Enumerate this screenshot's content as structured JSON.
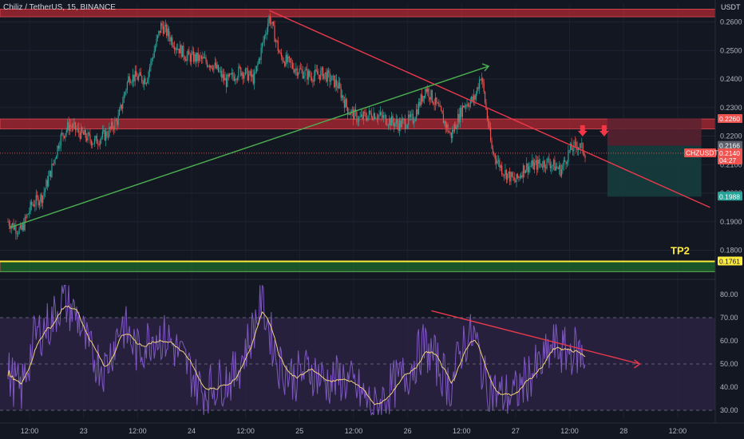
{
  "header": {
    "symbol": "Chiliz / TetherUS, 15, BINANCE",
    "currency": "USDT"
  },
  "colors": {
    "background": "#131722",
    "up": "#26a69a",
    "down": "#ef5350",
    "resistance_zone": "#b22833",
    "trendline_red": "#e8394b",
    "trendline_green": "#4caf50",
    "tp_line": "#ffeb3b",
    "tp_zone": "#1e6b2e",
    "rsi": "#7e57c2",
    "rsi_ma": "#f2d27d",
    "rsi_band": "#2a2140",
    "stop_zone": "#5c2230",
    "target_zone": "#163d3d"
  },
  "annotations": {
    "tp2_label": "TP2",
    "price_tag": "CHZUSDT",
    "tags": [
      {
        "id": "resistance",
        "text": "0.2260",
        "color": "#ef5350"
      },
      {
        "id": "entry",
        "text": "0.2166",
        "color": "#5d606b"
      },
      {
        "id": "last",
        "text": "0.2140",
        "sub": "04:27",
        "color": "#ef5350"
      },
      {
        "id": "target",
        "text": "0.1988",
        "color": "#26a69a"
      },
      {
        "id": "tp2",
        "text": "0.1761",
        "color": "#ffeb3b"
      }
    ]
  },
  "chart_data": [
    {
      "type": "candlestick",
      "title": "Chiliz / TetherUS, 15, BINANCE",
      "x_ticks": [
        "12:00",
        "23",
        "12:00",
        "24",
        "12:00",
        "25",
        "12:00",
        "26",
        "12:00",
        "27",
        "12:00",
        "28",
        "12:00"
      ],
      "y_ticks": [
        "0.2600",
        "0.2500",
        "0.2400",
        "0.2300",
        "0.2200",
        "0.2100",
        "0.2000",
        "0.1900",
        "0.1800"
      ],
      "ylim": [
        0.172,
        0.2665
      ],
      "xlim_days": [
        22.3,
        28.8
      ],
      "price_path": [
        [
          22.3,
          0.19
        ],
        [
          22.42,
          0.1865
        ],
        [
          22.52,
          0.196
        ],
        [
          22.62,
          0.199
        ],
        [
          22.7,
          0.208
        ],
        [
          22.78,
          0.219
        ],
        [
          22.87,
          0.224
        ],
        [
          22.97,
          0.221
        ],
        [
          23.1,
          0.218
        ],
        [
          23.22,
          0.221
        ],
        [
          23.32,
          0.226
        ],
        [
          23.42,
          0.241
        ],
        [
          23.58,
          0.24
        ],
        [
          23.72,
          0.259
        ],
        [
          23.85,
          0.252
        ],
        [
          23.95,
          0.248
        ],
        [
          24.08,
          0.247
        ],
        [
          24.2,
          0.245
        ],
        [
          24.32,
          0.239
        ],
        [
          24.45,
          0.243
        ],
        [
          24.58,
          0.24
        ],
        [
          24.72,
          0.262
        ],
        [
          24.82,
          0.248
        ],
        [
          24.95,
          0.244
        ],
        [
          25.1,
          0.241
        ],
        [
          25.22,
          0.242
        ],
        [
          25.35,
          0.238
        ],
        [
          25.45,
          0.229
        ],
        [
          25.55,
          0.226
        ],
        [
          25.68,
          0.228
        ],
        [
          25.8,
          0.226
        ],
        [
          25.92,
          0.224
        ],
        [
          26.05,
          0.226
        ],
        [
          26.17,
          0.237
        ],
        [
          26.28,
          0.23
        ],
        [
          26.4,
          0.22
        ],
        [
          26.52,
          0.231
        ],
        [
          26.62,
          0.233
        ],
        [
          26.68,
          0.242
        ],
        [
          26.78,
          0.215
        ],
        [
          26.88,
          0.208
        ],
        [
          27.0,
          0.204
        ],
        [
          27.08,
          0.209
        ],
        [
          27.2,
          0.21
        ],
        [
          27.3,
          0.211
        ],
        [
          27.42,
          0.208
        ],
        [
          27.5,
          0.215
        ],
        [
          27.58,
          0.217
        ],
        [
          27.65,
          0.214
        ]
      ],
      "rsi_path": [
        [
          22.3,
          46
        ],
        [
          22.42,
          38
        ],
        [
          22.55,
          62
        ],
        [
          22.7,
          68
        ],
        [
          22.8,
          78
        ],
        [
          22.95,
          70
        ],
        [
          23.05,
          55
        ],
        [
          23.2,
          48
        ],
        [
          23.35,
          68
        ],
        [
          23.5,
          55
        ],
        [
          23.65,
          63
        ],
        [
          23.8,
          60
        ],
        [
          23.95,
          50
        ],
        [
          24.1,
          38
        ],
        [
          24.25,
          42
        ],
        [
          24.4,
          45
        ],
        [
          24.55,
          62
        ],
        [
          24.65,
          78
        ],
        [
          24.8,
          50
        ],
        [
          24.95,
          44
        ],
        [
          25.1,
          48
        ],
        [
          25.25,
          42
        ],
        [
          25.4,
          44
        ],
        [
          25.55,
          38
        ],
        [
          25.7,
          30
        ],
        [
          25.85,
          40
        ],
        [
          26.0,
          46
        ],
        [
          26.15,
          58
        ],
        [
          26.25,
          52
        ],
        [
          26.4,
          40
        ],
        [
          26.52,
          60
        ],
        [
          26.62,
          62
        ],
        [
          26.72,
          42
        ],
        [
          26.85,
          36
        ],
        [
          27.0,
          37
        ],
        [
          27.1,
          44
        ],
        [
          27.25,
          50
        ],
        [
          27.35,
          58
        ],
        [
          27.45,
          55
        ],
        [
          27.55,
          56
        ],
        [
          27.65,
          52
        ]
      ],
      "rsi_ylim": [
        26,
        86
      ],
      "rsi_ticks": [
        "80.00",
        "70.00",
        "60.00",
        "50.00",
        "40.00",
        "30.00"
      ],
      "rsi_bands": [
        70,
        50,
        30
      ],
      "levels": {
        "resistance": 0.226,
        "entry": 0.2166,
        "last": 0.214,
        "target": 0.1988,
        "tp2": 0.1761
      },
      "zones": [
        {
          "name": "top-resistance",
          "from": 0.2645,
          "to": 0.2618
        },
        {
          "name": "mid-resistance",
          "from": 0.226,
          "to": 0.2225
        },
        {
          "name": "tp2-support",
          "from": 0.1761,
          "to": 0.1725
        }
      ],
      "trendlines": [
        {
          "name": "descending-resistance",
          "from": [
            24.72,
            0.264
          ],
          "to": [
            28.8,
            0.195
          ]
        },
        {
          "name": "ascending-support",
          "from": [
            22.32,
            0.188
          ],
          "to": [
            26.75,
            0.2445
          ]
        },
        {
          "name": "rsi-divergence",
          "from": [
            26.22,
            73
          ],
          "to": [
            28.15,
            50
          ]
        }
      ],
      "position": {
        "entry": 0.2166,
        "stop": 0.2262,
        "target": 0.1988,
        "start_day": 27.85,
        "end_day": 28.72
      }
    }
  ]
}
